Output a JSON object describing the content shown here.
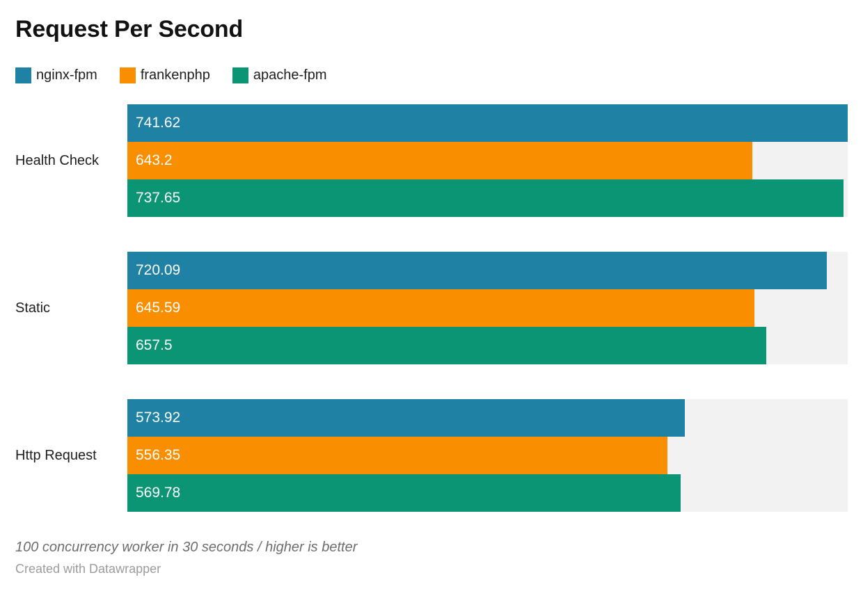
{
  "title": "Request Per Second",
  "legend": [
    {
      "label": "nginx-fpm",
      "color": "#1f81a3"
    },
    {
      "label": "frankenphp",
      "color": "#f98f00"
    },
    {
      "label": "apache-fpm",
      "color": "#0c9574"
    }
  ],
  "chart_data": {
    "type": "bar",
    "orientation": "horizontal",
    "title": "Request Per Second",
    "categories": [
      "Health Check",
      "Static",
      "Http Request"
    ],
    "series": [
      {
        "name": "nginx-fpm",
        "color": "#1f81a3",
        "values": [
          741.62,
          720.09,
          573.92
        ],
        "labels": [
          "741.62",
          "720.09",
          "573.92"
        ]
      },
      {
        "name": "frankenphp",
        "color": "#f98f00",
        "values": [
          643.2,
          645.59,
          556.35
        ],
        "labels": [
          "643.2",
          "645.59",
          "556.35"
        ]
      },
      {
        "name": "apache-fpm",
        "color": "#0c9574",
        "values": [
          737.65,
          657.5,
          569.78
        ],
        "labels": [
          "737.65",
          "657.5",
          "569.78"
        ]
      }
    ],
    "xlim": [
      0,
      741.62
    ],
    "grid": false,
    "legend_position": "top",
    "value_labels": "inside-start",
    "track_color": "#f2f2f2"
  },
  "footer": {
    "note": "100 concurrency worker in 30 seconds / higher is better",
    "attribution": "Created with Datawrapper"
  }
}
